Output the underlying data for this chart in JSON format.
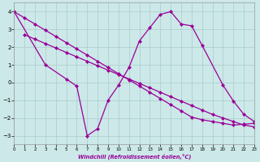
{
  "xlabel": "Windchill (Refroidissement éolien,°C)",
  "bg_color": "#cce8e8",
  "line_color": "#990099",
  "grid_color": "#aacccc",
  "xlim": [
    0,
    23
  ],
  "ylim": [
    -3.5,
    4.5
  ],
  "yticks": [
    -3,
    -2,
    -1,
    0,
    1,
    2,
    3,
    4
  ],
  "xticks": [
    0,
    1,
    2,
    3,
    4,
    5,
    6,
    7,
    8,
    9,
    10,
    11,
    12,
    13,
    14,
    15,
    16,
    17,
    18,
    19,
    20,
    21,
    22,
    23
  ],
  "line1_x": [
    0,
    1,
    2,
    3,
    4,
    5,
    6,
    7,
    8,
    9,
    10,
    11,
    12,
    13,
    14,
    15,
    16,
    17,
    18,
    19,
    20,
    21,
    22,
    23
  ],
  "line1_y": [
    4.0,
    3.65,
    3.3,
    2.95,
    2.6,
    2.25,
    1.9,
    1.55,
    1.2,
    0.85,
    0.5,
    0.15,
    -0.2,
    -0.55,
    -0.9,
    -1.25,
    -1.6,
    -1.95,
    -2.1,
    -2.2,
    -2.3,
    -2.4,
    -2.35,
    -2.3
  ],
  "line2_x": [
    1,
    2,
    3,
    4,
    5,
    6,
    7,
    8,
    9,
    10,
    11,
    12,
    13,
    14,
    15,
    16,
    17,
    18,
    19,
    20,
    21,
    22,
    23
  ],
  "line2_y": [
    2.7,
    2.45,
    2.2,
    1.95,
    1.7,
    1.45,
    1.2,
    0.95,
    0.7,
    0.45,
    0.2,
    -0.05,
    -0.3,
    -0.55,
    -0.8,
    -1.05,
    -1.3,
    -1.55,
    -1.8,
    -2.0,
    -2.2,
    -2.4,
    -2.5
  ],
  "line3_x": [
    0,
    3,
    5,
    6,
    7,
    8,
    9,
    10,
    11,
    12,
    13,
    14,
    15,
    16,
    17,
    18,
    20,
    21,
    22,
    23
  ],
  "line3_y": [
    4.0,
    1.0,
    0.2,
    -0.2,
    -3.0,
    -2.6,
    -1.0,
    -0.15,
    0.85,
    2.35,
    3.1,
    3.85,
    4.0,
    3.3,
    3.2,
    2.1,
    -0.15,
    -1.05,
    -1.8,
    -2.2
  ]
}
